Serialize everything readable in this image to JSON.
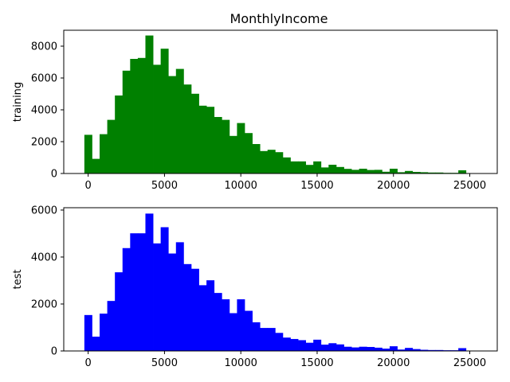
{
  "figure": {
    "title": "MonthlyIncome"
  },
  "chart_data": [
    {
      "type": "bar",
      "subtype": "histogram",
      "ylabel": "training",
      "xlabel": "",
      "color": "#008000",
      "xlim": [
        -1600,
        26800
      ],
      "ylim": [
        0,
        9000
      ],
      "xticks": [
        0,
        5000,
        10000,
        15000,
        20000,
        25000
      ],
      "yticks": [
        0,
        2000,
        4000,
        6000,
        8000
      ],
      "bin_start": -250,
      "bin_width": 500,
      "values": [
        2430,
        920,
        2470,
        3370,
        4900,
        6460,
        7200,
        7260,
        8670,
        6830,
        7840,
        6120,
        6570,
        5590,
        5010,
        4260,
        4190,
        3550,
        3370,
        2360,
        3170,
        2540,
        1850,
        1410,
        1490,
        1340,
        1010,
        760,
        760,
        540,
        760,
        380,
        550,
        410,
        290,
        230,
        300,
        220,
        230,
        110,
        300,
        80,
        160,
        100,
        80,
        60,
        60,
        40,
        40,
        200
      ]
    },
    {
      "type": "bar",
      "subtype": "histogram",
      "ylabel": "test",
      "xlabel": "",
      "color": "#0000ff",
      "xlim": [
        -1600,
        26800
      ],
      "ylim": [
        0,
        6100
      ],
      "xticks": [
        0,
        5000,
        10000,
        15000,
        20000,
        25000
      ],
      "yticks": [
        0,
        2000,
        4000,
        6000
      ],
      "bin_start": -250,
      "bin_width": 500,
      "values": [
        1530,
        610,
        1590,
        2130,
        3350,
        4380,
        5010,
        5010,
        5850,
        4580,
        5270,
        4150,
        4630,
        3700,
        3500,
        2800,
        3010,
        2470,
        2200,
        1610,
        2200,
        1710,
        1220,
        980,
        980,
        770,
        570,
        510,
        460,
        350,
        480,
        270,
        330,
        280,
        180,
        150,
        180,
        170,
        140,
        100,
        200,
        60,
        130,
        80,
        50,
        40,
        40,
        30,
        30,
        120
      ]
    }
  ]
}
